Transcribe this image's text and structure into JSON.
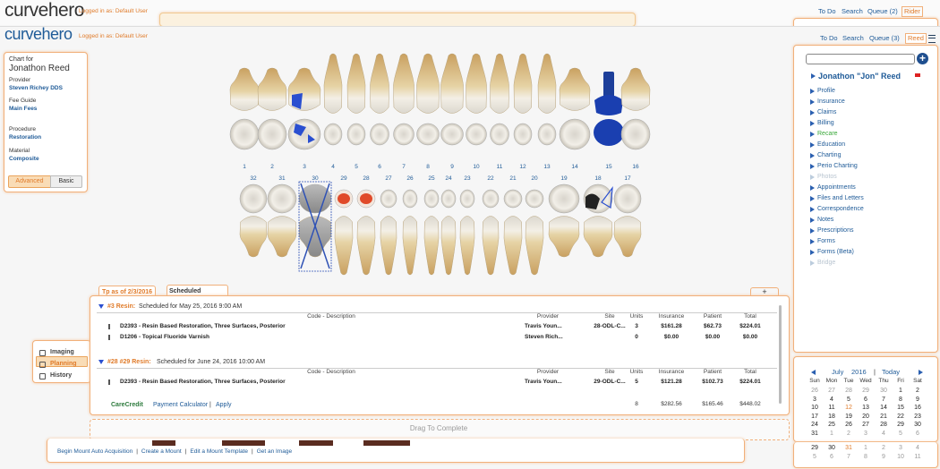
{
  "ghost_header": {
    "logo": "curvehero",
    "logged_in": "Logged in as: Default User",
    "nav": [
      "To Do",
      "Search",
      "Queue (2)",
      "Rider"
    ]
  },
  "header": {
    "logo": "curvehero",
    "logged_in": "Logged in as: Default User",
    "nav": [
      "To Do",
      "Search",
      "Queue (3)",
      "Reed"
    ]
  },
  "chart_info": {
    "chart_for_label": "Chart for",
    "patient": "Jonathon Reed",
    "provider_label": "Provider",
    "provider": "Steven Richey DDS",
    "fee_guide_label": "Fee Guide",
    "fee_guide": "Main Fees",
    "procedure_label": "Procedure",
    "procedure": "Restoration",
    "material_label": "Material",
    "material": "Composite",
    "modes": [
      "Advanced",
      "Basic"
    ]
  },
  "side_tabs": [
    "Imaging",
    "Planning",
    "History"
  ],
  "teeth": {
    "upper": [
      "1",
      "2",
      "3",
      "4",
      "5",
      "6",
      "7",
      "8",
      "9",
      "10",
      "11",
      "12",
      "13",
      "14",
      "15",
      "16"
    ],
    "lower": [
      "32",
      "31",
      "30",
      "29",
      "28",
      "27",
      "26",
      "25",
      "24",
      "23",
      "22",
      "21",
      "20",
      "19",
      "18",
      "17"
    ]
  },
  "treatment_plan": {
    "tabs": [
      "Tp as of 2/3/2016",
      "Scheduled"
    ],
    "add": "+",
    "columns": [
      "Code - Description",
      "Provider",
      "Site",
      "Units",
      "Insurance",
      "Patient",
      "Total"
    ],
    "groups": [
      {
        "title": "#3 Resin:",
        "schedule": "Scheduled for May 25, 2016 9:00 AM",
        "rows": [
          [
            "D2393 - Resin Based Restoration, Three Surfaces, Posterior",
            "Travis Youn...",
            "28-ODL-C...",
            3,
            "$161.28",
            "$62.73",
            "$224.01"
          ],
          [
            "D1206 - Topical Fluoride Varnish",
            "Steven Rich...",
            null,
            0,
            "$0.00",
            "$0.00",
            "$0.00"
          ]
        ]
      },
      {
        "title": "#28 #29 Resin:",
        "schedule": "Scheduled for June 24, 2016 10:00 AM",
        "rows": [
          [
            "D2393 - Resin Based Restoration, Three Surfaces, Posterior",
            "Travis Youn...",
            "29-ODL-C...",
            5,
            "$121.28",
            "$102.73",
            "$224.01"
          ]
        ]
      }
    ],
    "footer": {
      "carecredit": "CareCredit",
      "links": [
        "Payment Calculator",
        "Apply"
      ],
      "separator": "|",
      "totals": [
        8,
        "$282.56",
        "$165.46",
        "$448.02"
      ]
    }
  },
  "drag_area": "Drag To Complete",
  "bottom_links": {
    "links": [
      "Begin Mount Auto Acquisition",
      "Create a Mount",
      "Edit a Mount Template",
      "Get an Image"
    ],
    "separator": "|"
  },
  "patient_panel": {
    "add": "+",
    "name": "Jonathon \"Jon\" Reed",
    "menu": [
      "Profile",
      "Insurance",
      "Claims",
      "Billing",
      "Recare",
      "Education",
      "Charting",
      "Perio Charting",
      "Photos",
      "Appointments",
      "Files and Letters",
      "Correspondence",
      "Notes",
      "Prescriptions",
      "Forms",
      "Forms (Beta)",
      "Bridge"
    ]
  },
  "calendar": {
    "month": "July",
    "year": "2016",
    "separator": "|",
    "today": "Today",
    "days": [
      "Sun",
      "Mon",
      "Tue",
      "Wed",
      "Thu",
      "Fri",
      "Sat"
    ],
    "weeks": [
      [
        26,
        27,
        28,
        29,
        30,
        1,
        2
      ],
      [
        3,
        4,
        5,
        6,
        7,
        8,
        9
      ],
      [
        10,
        11,
        12,
        13,
        14,
        15,
        16
      ],
      [
        17,
        18,
        19,
        20,
        21,
        22,
        23
      ],
      [
        24,
        25,
        26,
        27,
        28,
        29,
        30
      ],
      [
        31,
        1,
        2,
        3,
        4,
        5,
        6
      ]
    ],
    "ghost_weeks": [
      [
        29,
        30,
        31,
        1,
        2,
        3,
        4
      ],
      [
        5,
        6,
        7,
        8,
        9,
        10,
        11
      ]
    ]
  }
}
